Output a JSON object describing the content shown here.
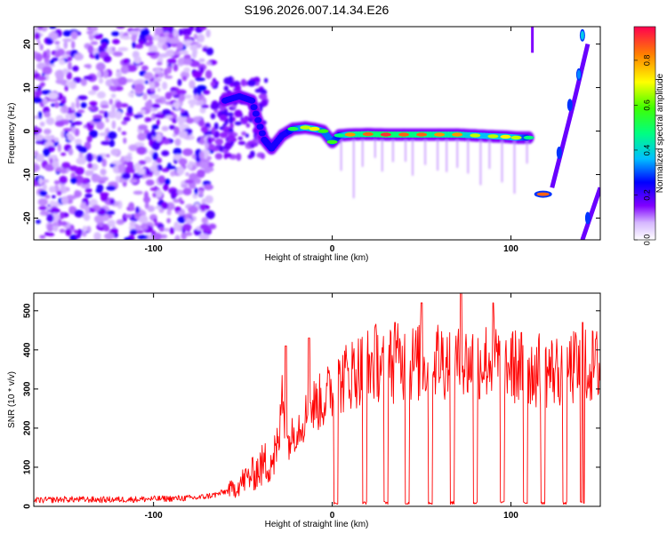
{
  "title": "S196.2026.007.14.34.E26",
  "chart_data": [
    {
      "type": "heatmap",
      "xlabel": "Height of straight line (km)",
      "ylabel": "Frequency (Hz)",
      "xlim": [
        -167,
        150
      ],
      "ylim": [
        -25,
        24
      ],
      "xticks": [
        -100,
        0,
        100
      ],
      "yticks": [
        -20,
        -10,
        0,
        10,
        20
      ],
      "colorbar": {
        "label": "Normalized spectral amplitude",
        "range": [
          0,
          0.95
        ],
        "ticks": [
          0.0,
          0.2,
          0.4,
          0.6,
          0.8
        ]
      },
      "noise_region_x": [
        -167,
        -67
      ],
      "ridge": [
        {
          "x": -60,
          "y": 7,
          "a": 0.35
        },
        {
          "x": -52,
          "y": 8,
          "a": 0.45
        },
        {
          "x": -45,
          "y": 7,
          "a": 0.3
        },
        {
          "x": -38,
          "y": -2,
          "a": 0.25
        },
        {
          "x": -34,
          "y": -4,
          "a": 0.3
        },
        {
          "x": -28,
          "y": -1,
          "a": 0.35
        },
        {
          "x": -22,
          "y": 0.5,
          "a": 0.55
        },
        {
          "x": -15,
          "y": 0.8,
          "a": 0.7
        },
        {
          "x": -10,
          "y": 0.5,
          "a": 0.75
        },
        {
          "x": -5,
          "y": 0,
          "a": 0.6
        },
        {
          "x": 0,
          "y": -2.5,
          "a": 0.6
        },
        {
          "x": 4,
          "y": -1,
          "a": 0.5
        },
        {
          "x": 10,
          "y": -0.8,
          "a": 0.85
        },
        {
          "x": 20,
          "y": -0.7,
          "a": 0.9
        },
        {
          "x": 30,
          "y": -0.8,
          "a": 0.95
        },
        {
          "x": 40,
          "y": -0.8,
          "a": 0.9
        },
        {
          "x": 50,
          "y": -0.8,
          "a": 0.9
        },
        {
          "x": 60,
          "y": -0.8,
          "a": 0.85
        },
        {
          "x": 70,
          "y": -0.8,
          "a": 0.85
        },
        {
          "x": 80,
          "y": -1,
          "a": 0.7
        },
        {
          "x": 90,
          "y": -1.2,
          "a": 0.7
        },
        {
          "x": 97,
          "y": -1.3,
          "a": 0.75
        },
        {
          "x": 103,
          "y": -1.5,
          "a": 0.7
        },
        {
          "x": 110,
          "y": -1.5,
          "a": 0.5
        }
      ],
      "isolated_features": [
        {
          "x": 118,
          "y": -14.5,
          "a": 0.9
        },
        {
          "x": 127,
          "y": -5,
          "a": 0.3
        },
        {
          "x": 133,
          "y": 6,
          "a": 0.3
        },
        {
          "x": 138,
          "y": 13,
          "a": 0.35
        },
        {
          "x": 140,
          "y": 22,
          "a": 0.4
        },
        {
          "x": 143,
          "y": -20,
          "a": 0.3
        }
      ]
    },
    {
      "type": "line",
      "xlabel": "Height of straight line (km)",
      "ylabel": "SNR (10 * v/v)",
      "xlim": [
        -167,
        150
      ],
      "ylim": [
        0,
        545
      ],
      "xticks": [
        -100,
        0,
        100
      ],
      "yticks": [
        0,
        100,
        200,
        300,
        400,
        500
      ],
      "color": "#ff0000",
      "series": [
        {
          "x": [
            -167,
            -150,
            -130,
            -110,
            -90,
            -75,
            -65,
            -55,
            -50,
            -45,
            -40,
            -35,
            -30,
            -28,
            -25,
            -20,
            -15,
            -10,
            -5,
            0,
            5,
            10,
            15,
            20,
            25,
            30,
            40,
            50,
            60,
            70,
            80,
            90,
            100,
            110,
            120,
            130,
            140,
            150
          ],
          "y": [
            15,
            18,
            17,
            18,
            20,
            22,
            30,
            45,
            65,
            80,
            100,
            120,
            140,
            300,
            160,
            200,
            230,
            260,
            270,
            300,
            320,
            340,
            350,
            360,
            370,
            360,
            370,
            365,
            380,
            360,
            370,
            375,
            360,
            350,
            345,
            350,
            355,
            360
          ]
        }
      ],
      "dropouts_x": [
        2,
        18,
        30,
        42,
        55,
        67,
        80,
        95,
        108,
        118,
        130,
        140
      ],
      "spikes": [
        {
          "x": -26,
          "y": 410
        },
        {
          "x": -13,
          "y": 430
        },
        {
          "x": 35,
          "y": 470
        },
        {
          "x": 50,
          "y": 520
        },
        {
          "x": 72,
          "y": 545
        },
        {
          "x": 90,
          "y": 520
        },
        {
          "x": 140,
          "y": 470
        }
      ]
    }
  ]
}
